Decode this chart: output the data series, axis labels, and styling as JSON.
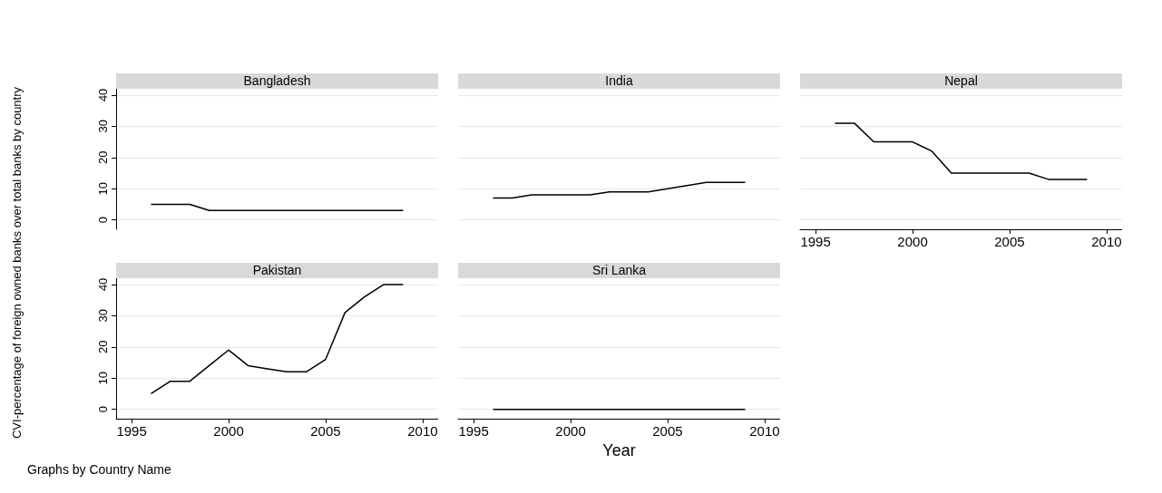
{
  "chart_data": [
    {
      "type": "line",
      "title": "Bangladesh",
      "ylabel": "CVI-percentage of foreign owned banks over total banks by country",
      "x": [
        1996,
        1997,
        1998,
        1999,
        2000,
        2001,
        2002,
        2003,
        2004,
        2005,
        2006,
        2007,
        2008,
        2009
      ],
      "series": [
        {
          "color": "#000000",
          "values": [
            5,
            5,
            5,
            3,
            3,
            3,
            3,
            3,
            3,
            3,
            3,
            3,
            3,
            3
          ]
        }
      ],
      "ylim": [
        -3,
        42
      ],
      "yticks": [
        0,
        10,
        20,
        30,
        40
      ],
      "grid": "y",
      "marker": "none",
      "line_style": "solid",
      "tick_labels": "y"
    },
    {
      "type": "line",
      "title": "India",
      "x": [
        1996,
        1997,
        1998,
        1999,
        2000,
        2001,
        2002,
        2003,
        2004,
        2005,
        2006,
        2007,
        2008,
        2009
      ],
      "series": [
        {
          "color": "#000000",
          "values": [
            7,
            7,
            8,
            8,
            8,
            8,
            9,
            9,
            9,
            10,
            11,
            12,
            12,
            12
          ]
        }
      ],
      "yticks": [
        0,
        10,
        20,
        30,
        40
      ],
      "grid": "y",
      "marker": "none",
      "line_style": "solid",
      "tick_labels": false
    },
    {
      "type": "line",
      "title": "Nepal",
      "x": [
        1996,
        1997,
        1998,
        1999,
        2000,
        2001,
        2002,
        2003,
        2004,
        2005,
        2006,
        2007,
        2008,
        2009
      ],
      "series": [
        {
          "color": "#000000",
          "values": [
            31,
            31,
            25,
            25,
            25,
            22,
            15,
            15,
            15,
            15,
            15,
            13,
            13,
            13
          ]
        }
      ],
      "xlim": [
        1994.2,
        2010.8
      ],
      "xticks": [
        1995,
        2000,
        2005,
        2010
      ],
      "yticks": [
        0,
        10,
        20,
        30,
        40
      ],
      "grid": "y",
      "marker": "none",
      "line_style": "solid",
      "tick_labels": "x"
    },
    {
      "type": "line",
      "title": "Pakistan",
      "annotations": [
        "Graphs by Country Name"
      ],
      "x": [
        1996,
        1997,
        1998,
        1999,
        2000,
        2001,
        2002,
        2003,
        2004,
        2005,
        2006,
        2007,
        2008,
        2009
      ],
      "series": [
        {
          "color": "#000000",
          "values": [
            5,
            9,
            9,
            14,
            19,
            14,
            13,
            12,
            12,
            16,
            31,
            36,
            40,
            40
          ]
        }
      ],
      "xlim": [
        1994.2,
        2010.8
      ],
      "xticks": [
        1995,
        2000,
        2005,
        2010
      ],
      "ylim": [
        -3,
        42
      ],
      "yticks": [
        0,
        10,
        20,
        30,
        40
      ],
      "grid": "y",
      "marker": "none",
      "line_style": "solid"
    },
    {
      "type": "line",
      "title": "Sri Lanka",
      "xlabel": "Year",
      "x": [
        1996,
        1997,
        1998,
        1999,
        2000,
        2001,
        2002,
        2003,
        2004,
        2005,
        2006,
        2007,
        2008,
        2009
      ],
      "series": [
        {
          "color": "#000000",
          "values": [
            0,
            0,
            0,
            0,
            0,
            0,
            0,
            0,
            0,
            0,
            0,
            0,
            0,
            0
          ]
        }
      ],
      "xlim": [
        1994.2,
        2010.8
      ],
      "xticks": [
        1995,
        2000,
        2005,
        2010
      ],
      "yticks": [
        0,
        10,
        20,
        30,
        40
      ],
      "grid": "y",
      "marker": "none",
      "line_style": "solid",
      "tick_labels": "x"
    }
  ]
}
